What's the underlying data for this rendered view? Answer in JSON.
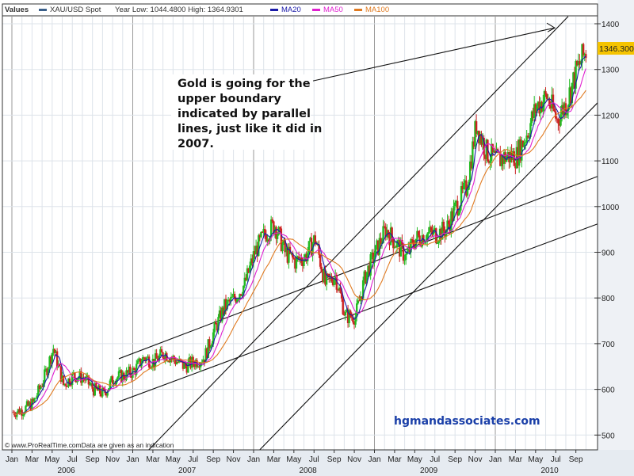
{
  "chart_data": {
    "type": "line",
    "title": "XAU/USD Spot",
    "legend": {
      "prefix": "Values",
      "series_label": "XAU/USD Spot",
      "year_range": "Year Low: 1044.4800 High: 1364.9301",
      "ma20": "MA20",
      "ma50": "MA50",
      "ma100": "MA100"
    },
    "colors": {
      "up": "#22bb22",
      "down": "#cc2222",
      "ma20": "#1a1aa8",
      "ma50": "#e020d0",
      "ma100": "#e07a20",
      "label_bg": "#f5c400",
      "watermark": "#1a3fa8"
    },
    "last_price_label": "1346.300",
    "ylim": [
      490,
      1420
    ],
    "y_ticks": [
      "500",
      "600",
      "700",
      "800",
      "900",
      "1000",
      "1100",
      "1200",
      "1300",
      "1400"
    ],
    "x_month_labels": [
      "Jan",
      "Mar",
      "May",
      "Jul",
      "Sep",
      "Nov",
      "Jan",
      "Mar",
      "May",
      "Jul",
      "Sep",
      "Nov",
      "Jan",
      "Mar",
      "May",
      "Jul",
      "Sep",
      "Nov",
      "Jan",
      "Mar",
      "May",
      "Jul",
      "Sep",
      "Nov",
      "Jan",
      "Mar",
      "May",
      "Jul",
      "Sep"
    ],
    "x_year_labels": [
      "2006",
      "2007",
      "2008",
      "2009",
      "2010"
    ],
    "monthly_start": 2006.0,
    "monthly_close": [
      550,
      555,
      570,
      620,
      690,
      610,
      630,
      625,
      600,
      590,
      625,
      630,
      640,
      670,
      660,
      680,
      665,
      650,
      660,
      670,
      730,
      780,
      800,
      830,
      900,
      940,
      960,
      900,
      880,
      890,
      930,
      830,
      850,
      760,
      760,
      850,
      900,
      950,
      920,
      890,
      930,
      940,
      940,
      950,
      1000,
      1040,
      1180,
      1120,
      1100,
      1110,
      1110,
      1160,
      1220,
      1240,
      1190,
      1230,
      1300,
      1346
    ],
    "trendlines": [
      {
        "name": "channel-upper",
        "from": [
          2006.885,
          667
        ],
        "to": [
          2010.846,
          1066
        ]
      },
      {
        "name": "channel-lower",
        "from": [
          2006.885,
          573
        ],
        "to": [
          2010.846,
          962
        ]
      },
      {
        "name": "steep-upper",
        "from": [
          2007.134,
          468
        ],
        "to": [
          2010.603,
          1416
        ]
      },
      {
        "name": "steep-lower",
        "from": [
          2008.052,
          468
        ],
        "to": [
          2010.846,
          1227
        ]
      },
      {
        "name": "annotation-arrow",
        "from": [
          2008.492,
          1275
        ],
        "to": [
          2010.492,
          1391
        ]
      }
    ],
    "annotation": [
      "Gold is going for the",
      "upper boundary",
      "indicated by parallel",
      "lines, just like it did in",
      "2007."
    ],
    "watermark": "hgmandassociates.com",
    "copyright": "© www.ProRealTime.comData are given as an indication"
  }
}
